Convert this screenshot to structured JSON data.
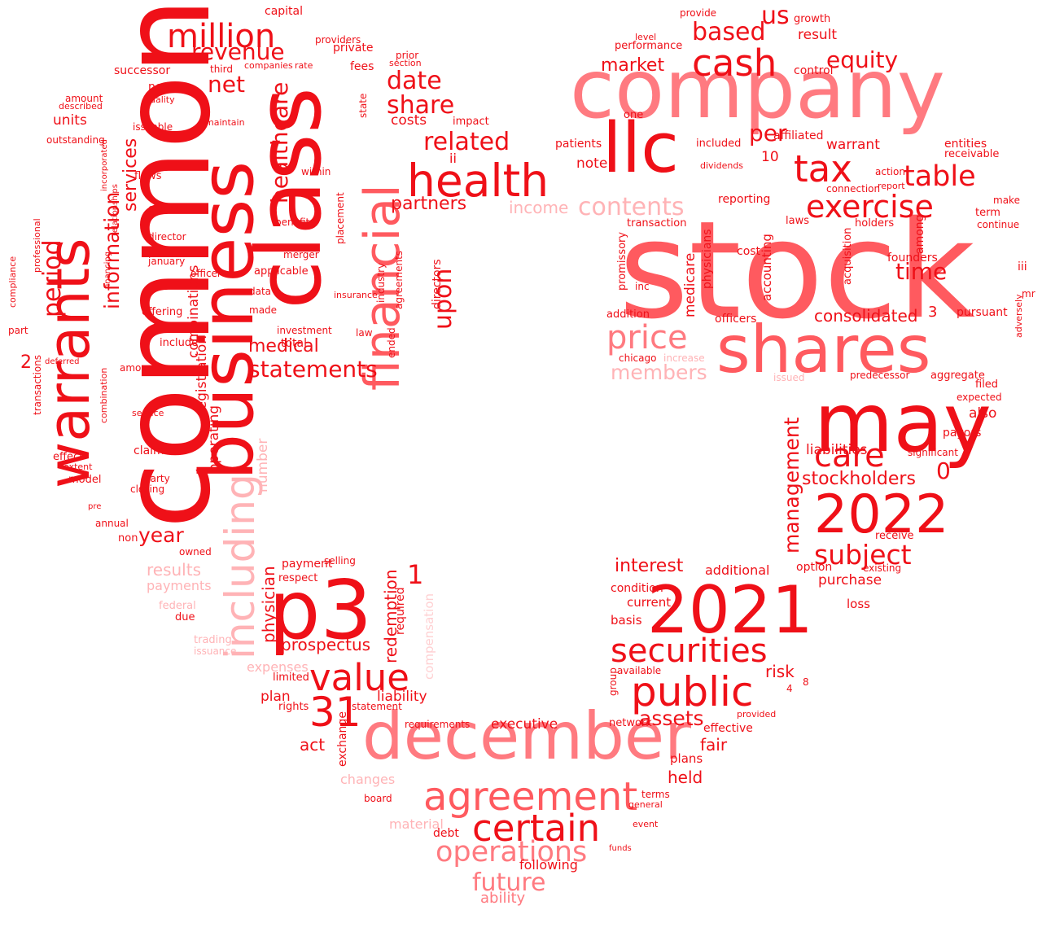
{
  "palette": {
    "red": "#ef1018",
    "coral": "#ff5a5f",
    "pink": "#ff7a80",
    "light": "#ffb3b6",
    "faint": "#ffd0d2"
  },
  "words": [
    {
      "text": "stock",
      "color": "coral"
    },
    {
      "text": "common",
      "color": "red"
    },
    {
      "text": "company",
      "color": "pink"
    },
    {
      "text": "class",
      "color": "red"
    },
    {
      "text": "may",
      "color": "red"
    },
    {
      "text": "business",
      "color": "red"
    },
    {
      "text": "shares",
      "color": "coral"
    },
    {
      "text": "december",
      "color": "pink"
    },
    {
      "text": "p3",
      "color": "red"
    },
    {
      "text": "2021",
      "color": "red"
    },
    {
      "text": "warrants",
      "color": "red"
    },
    {
      "text": "llc",
      "color": "red"
    },
    {
      "text": "financial",
      "color": "coral"
    },
    {
      "text": "health",
      "color": "red"
    },
    {
      "text": "including",
      "color": "light"
    },
    {
      "text": "agreement",
      "color": "coral"
    },
    {
      "text": "2022",
      "color": "red"
    },
    {
      "text": "public",
      "color": "red"
    },
    {
      "text": "securities",
      "color": "red"
    },
    {
      "text": "value",
      "color": "red"
    },
    {
      "text": "certain",
      "color": "red"
    },
    {
      "text": "cash",
      "color": "red"
    },
    {
      "text": "tax",
      "color": "red"
    },
    {
      "text": "31",
      "color": "red"
    },
    {
      "text": "million",
      "color": "red"
    },
    {
      "text": "price",
      "color": "pink"
    },
    {
      "text": "exercise",
      "color": "red"
    },
    {
      "text": "table",
      "color": "red"
    },
    {
      "text": "operations",
      "color": "pink"
    },
    {
      "text": "future",
      "color": "pink"
    },
    {
      "text": "care",
      "color": "red"
    },
    {
      "text": "subject",
      "color": "red"
    },
    {
      "text": "statements",
      "color": "red"
    },
    {
      "text": "related",
      "color": "red"
    },
    {
      "text": "based",
      "color": "red"
    },
    {
      "text": "equity",
      "color": "red"
    },
    {
      "text": "contents",
      "color": "light"
    },
    {
      "text": "members",
      "color": "light"
    },
    {
      "text": "date",
      "color": "red"
    },
    {
      "text": "share",
      "color": "red"
    },
    {
      "text": "revenue",
      "color": "red"
    },
    {
      "text": "net",
      "color": "red"
    },
    {
      "text": "healthcare",
      "color": "red"
    },
    {
      "text": "upon",
      "color": "red"
    },
    {
      "text": "period",
      "color": "red"
    },
    {
      "text": "information",
      "color": "red"
    },
    {
      "text": "services",
      "color": "red"
    },
    {
      "text": "medical",
      "color": "red"
    },
    {
      "text": "management",
      "color": "red"
    },
    {
      "text": "year",
      "color": "red"
    },
    {
      "text": "results",
      "color": "light"
    },
    {
      "text": "interest",
      "color": "red"
    },
    {
      "text": "assets",
      "color": "red"
    },
    {
      "text": "time",
      "color": "red"
    },
    {
      "text": "per",
      "color": "red"
    },
    {
      "text": "market",
      "color": "red"
    },
    {
      "text": "us",
      "color": "red"
    },
    {
      "text": "partners",
      "color": "red"
    },
    {
      "text": "income",
      "color": "light"
    },
    {
      "text": "stockholders",
      "color": "red"
    },
    {
      "text": "consolidated",
      "color": "red"
    },
    {
      "text": "physician",
      "color": "red"
    },
    {
      "text": "prospectus",
      "color": "red"
    },
    {
      "text": "redemption",
      "color": "red"
    },
    {
      "text": "liability",
      "color": "red"
    },
    {
      "text": "plan",
      "color": "red"
    },
    {
      "text": "act",
      "color": "red"
    },
    {
      "text": "held",
      "color": "red"
    },
    {
      "text": "fair",
      "color": "red"
    },
    {
      "text": "risk",
      "color": "red"
    },
    {
      "text": "executive",
      "color": "red"
    },
    {
      "text": "ability",
      "color": "pink"
    },
    {
      "text": "liabilities",
      "color": "red"
    },
    {
      "text": "also",
      "color": "red"
    },
    {
      "text": "purchase",
      "color": "red"
    },
    {
      "text": "warrant",
      "color": "red"
    },
    {
      "text": "note",
      "color": "red"
    },
    {
      "text": "units",
      "color": "red"
    },
    {
      "text": "operating",
      "color": "red"
    },
    {
      "text": "registration",
      "color": "red"
    },
    {
      "text": "combinations",
      "color": "red"
    },
    {
      "text": "number",
      "color": "light"
    },
    {
      "text": "expenses",
      "color": "light"
    },
    {
      "text": "payments",
      "color": "light"
    },
    {
      "text": "compensation",
      "color": "faint"
    },
    {
      "text": "changes",
      "color": "light"
    },
    {
      "text": "material",
      "color": "light"
    },
    {
      "text": "following",
      "color": "red"
    },
    {
      "text": "debt",
      "color": "red"
    },
    {
      "text": "ii",
      "color": "red"
    },
    {
      "text": "entities",
      "color": "red"
    },
    {
      "text": "patients",
      "color": "red"
    },
    {
      "text": "result",
      "color": "red"
    },
    {
      "text": "0",
      "color": "red"
    },
    {
      "text": "1",
      "color": "red"
    },
    {
      "text": "2",
      "color": "red"
    },
    {
      "text": "3",
      "color": "red"
    },
    {
      "text": "10",
      "color": "red"
    },
    {
      "text": "affiliated",
      "color": "red"
    },
    {
      "text": "accounting",
      "color": "red"
    },
    {
      "text": "medicare",
      "color": "red"
    },
    {
      "text": "physicians",
      "color": "red"
    },
    {
      "text": "officers",
      "color": "red"
    },
    {
      "text": "pursuant",
      "color": "red"
    },
    {
      "text": "aggregate",
      "color": "red"
    },
    {
      "text": "payors",
      "color": "red"
    },
    {
      "text": "expected",
      "color": "red"
    },
    {
      "text": "significant",
      "color": "red"
    },
    {
      "text": "founders",
      "color": "red"
    },
    {
      "text": "holders",
      "color": "red"
    },
    {
      "text": "private",
      "color": "red"
    },
    {
      "text": "capital",
      "color": "red"
    },
    {
      "text": "fees",
      "color": "red"
    },
    {
      "text": "costs",
      "color": "red"
    },
    {
      "text": "directors",
      "color": "red"
    },
    {
      "text": "agreements",
      "color": "red"
    },
    {
      "text": "placement",
      "color": "red"
    },
    {
      "text": "industry",
      "color": "red"
    },
    {
      "text": "total",
      "color": "red"
    },
    {
      "text": "within",
      "color": "red"
    },
    {
      "text": "investment",
      "color": "red"
    },
    {
      "text": "law",
      "color": "red"
    },
    {
      "text": "applicable",
      "color": "red"
    },
    {
      "text": "merger",
      "color": "red"
    },
    {
      "text": "benefits",
      "color": "red"
    },
    {
      "text": "data",
      "color": "red"
    },
    {
      "text": "made",
      "color": "red"
    },
    {
      "text": "officer",
      "color": "red"
    },
    {
      "text": "director",
      "color": "red"
    },
    {
      "text": "january",
      "color": "red"
    },
    {
      "text": "offering",
      "color": "red"
    },
    {
      "text": "include",
      "color": "red"
    },
    {
      "text": "amounts",
      "color": "red"
    },
    {
      "text": "claims",
      "color": "red"
    },
    {
      "text": "party",
      "color": "red"
    },
    {
      "text": "closing",
      "color": "red"
    },
    {
      "text": "model",
      "color": "red"
    },
    {
      "text": "non",
      "color": "red"
    },
    {
      "text": "owned",
      "color": "red"
    },
    {
      "text": "new",
      "color": "red"
    },
    {
      "text": "flows",
      "color": "red"
    },
    {
      "text": "issuable",
      "color": "red"
    },
    {
      "text": "outstanding",
      "color": "red"
    },
    {
      "text": "successor",
      "color": "red"
    },
    {
      "text": "amount",
      "color": "red"
    },
    {
      "text": "contracts",
      "color": "red"
    },
    {
      "text": "transactions",
      "color": "red"
    },
    {
      "text": "combination",
      "color": "red"
    },
    {
      "text": "effect",
      "color": "red"
    },
    {
      "text": "selling",
      "color": "red"
    },
    {
      "text": "payment",
      "color": "red"
    },
    {
      "text": "respect",
      "color": "red"
    },
    {
      "text": "limited",
      "color": "red"
    },
    {
      "text": "rights",
      "color": "red"
    },
    {
      "text": "statement",
      "color": "red"
    },
    {
      "text": "exchange",
      "color": "red"
    },
    {
      "text": "requirements",
      "color": "red"
    },
    {
      "text": "board",
      "color": "red"
    },
    {
      "text": "terms",
      "color": "red"
    },
    {
      "text": "general",
      "color": "red"
    },
    {
      "text": "event",
      "color": "red"
    },
    {
      "text": "funds",
      "color": "red"
    },
    {
      "text": "plans",
      "color": "red"
    },
    {
      "text": "effective",
      "color": "red"
    },
    {
      "text": "provided",
      "color": "red"
    },
    {
      "text": "network",
      "color": "red"
    },
    {
      "text": "available",
      "color": "red"
    },
    {
      "text": "basis",
      "color": "red"
    },
    {
      "text": "current",
      "color": "red"
    },
    {
      "text": "condition",
      "color": "red"
    },
    {
      "text": "additional",
      "color": "red"
    },
    {
      "text": "option",
      "color": "red"
    },
    {
      "text": "loss",
      "color": "red"
    },
    {
      "text": "existing",
      "color": "red"
    },
    {
      "text": "receive",
      "color": "red"
    },
    {
      "text": "filed",
      "color": "red"
    },
    {
      "text": "make",
      "color": "red"
    },
    {
      "text": "term",
      "color": "red"
    },
    {
      "text": "continue",
      "color": "red"
    },
    {
      "text": "receivable",
      "color": "red"
    },
    {
      "text": "growth",
      "color": "red"
    },
    {
      "text": "level",
      "color": "red"
    },
    {
      "text": "performance",
      "color": "red"
    },
    {
      "text": "control",
      "color": "red"
    },
    {
      "text": "provide",
      "color": "red"
    },
    {
      "text": "one",
      "color": "red"
    },
    {
      "text": "included",
      "color": "red"
    },
    {
      "text": "dividends",
      "color": "red"
    },
    {
      "text": "reporting",
      "color": "red"
    },
    {
      "text": "transaction",
      "color": "red"
    },
    {
      "text": "promissory",
      "color": "red"
    },
    {
      "text": "addition",
      "color": "red"
    },
    {
      "text": "inc",
      "color": "red"
    },
    {
      "text": "cost",
      "color": "red"
    },
    {
      "text": "laws",
      "color": "red"
    },
    {
      "text": "connection",
      "color": "red"
    },
    {
      "text": "report",
      "color": "red"
    },
    {
      "text": "action",
      "color": "red"
    },
    {
      "text": "acquisition",
      "color": "red"
    },
    {
      "text": "among",
      "color": "red"
    },
    {
      "text": "predecessor",
      "color": "red"
    },
    {
      "text": "mr",
      "color": "red"
    },
    {
      "text": "iii",
      "color": "red"
    },
    {
      "text": "adversely",
      "color": "red"
    },
    {
      "text": "issued",
      "color": "light"
    },
    {
      "text": "increase",
      "color": "light"
    },
    {
      "text": "chicago",
      "color": "red"
    },
    {
      "text": "federal",
      "color": "light"
    },
    {
      "text": "trading",
      "color": "light"
    },
    {
      "text": "issuance",
      "color": "light"
    },
    {
      "text": "due",
      "color": "red"
    },
    {
      "text": "insurance",
      "color": "red"
    },
    {
      "text": "ended",
      "color": "red"
    },
    {
      "text": "required",
      "color": "red"
    },
    {
      "text": "state",
      "color": "red"
    },
    {
      "text": "section",
      "color": "red"
    },
    {
      "text": "prior",
      "color": "red"
    },
    {
      "text": "providers",
      "color": "red"
    },
    {
      "text": "impact",
      "color": "red"
    },
    {
      "text": "quality",
      "color": "red"
    },
    {
      "text": "described",
      "color": "red"
    },
    {
      "text": "maintain",
      "color": "red"
    },
    {
      "text": "third",
      "color": "red"
    },
    {
      "text": "companies",
      "color": "red"
    },
    {
      "text": "rate",
      "color": "red"
    },
    {
      "text": "part",
      "color": "red"
    },
    {
      "text": "professional",
      "color": "red"
    },
    {
      "text": "relationships",
      "color": "red"
    },
    {
      "text": "incorporated",
      "color": "red"
    },
    {
      "text": "financing",
      "color": "red"
    },
    {
      "text": "compliance",
      "color": "red"
    },
    {
      "text": "deferred",
      "color": "red"
    },
    {
      "text": "service",
      "color": "red"
    },
    {
      "text": "annual",
      "color": "red"
    },
    {
      "text": "extent",
      "color": "red"
    },
    {
      "text": "pre",
      "color": "red"
    },
    {
      "text": "8",
      "color": "red"
    },
    {
      "text": "4",
      "color": "red"
    },
    {
      "text": "group",
      "color": "red"
    },
    {
      "text": "establish",
      "color": "red"
    }
  ]
}
